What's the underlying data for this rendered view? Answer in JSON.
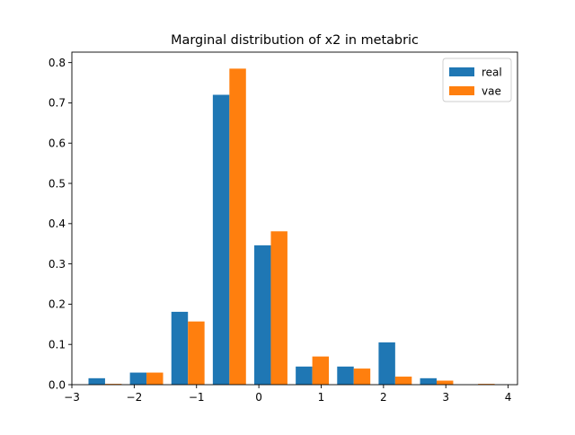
{
  "chart_data": {
    "type": "bar",
    "title": "Marginal distribution of x2 in metabric",
    "xlabel": "",
    "ylabel": "",
    "xlim": [
      -3,
      4.15
    ],
    "ylim": [
      0,
      0.826
    ],
    "xticks": [
      -3,
      -2,
      -1,
      0,
      1,
      2,
      3,
      4
    ],
    "xtick_labels": [
      "−3",
      "−2",
      "−1",
      "0",
      "1",
      "2",
      "3",
      "4"
    ],
    "yticks": [
      0.0,
      0.1,
      0.2,
      0.3,
      0.4,
      0.5,
      0.6,
      0.7,
      0.8
    ],
    "ytick_labels": [
      "0.0",
      "0.1",
      "0.2",
      "0.3",
      "0.4",
      "0.5",
      "0.6",
      "0.7",
      "0.8"
    ],
    "bin_edges": [
      -2.8,
      -2.135,
      -1.47,
      -0.805,
      -0.14,
      0.525,
      1.19,
      1.855,
      2.52,
      3.185,
      3.85
    ],
    "grid": false,
    "legend_position": "top-right",
    "series": [
      {
        "name": "real",
        "color": "#1f77b4",
        "values": [
          0.016,
          0.03,
          0.181,
          0.72,
          0.346,
          0.045,
          0.045,
          0.105,
          0.016,
          0.0
        ]
      },
      {
        "name": "vae",
        "color": "#ff7f0e",
        "values": [
          0.002,
          0.03,
          0.157,
          0.785,
          0.381,
          0.07,
          0.04,
          0.02,
          0.01,
          0.002
        ]
      }
    ]
  }
}
